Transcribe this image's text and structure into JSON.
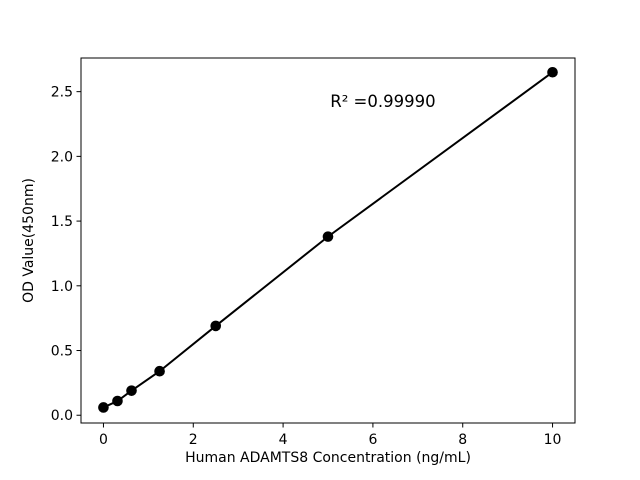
{
  "figure": {
    "background": "#ffffff"
  },
  "chart_data": {
    "type": "scatter",
    "title": "",
    "xlabel": "Human ADAMTS8 Concentration (ng/mL)",
    "ylabel": "OD Value(450nm)",
    "annotation": {
      "text": "R² =0.99990",
      "x": 5.05,
      "y": 2.38
    },
    "x": [
      0,
      0.3125,
      0.625,
      1.25,
      2.5,
      5,
      10
    ],
    "y": [
      0.06,
      0.11,
      0.19,
      0.34,
      0.69,
      1.38,
      2.65
    ],
    "line_through_points": true,
    "xticks": {
      "values": [
        0,
        2,
        4,
        6,
        8,
        10
      ],
      "labels": [
        "0",
        "2",
        "4",
        "6",
        "8",
        "10"
      ]
    },
    "yticks": {
      "values": [
        0,
        0.5,
        1,
        1.5,
        2,
        2.5
      ],
      "labels": [
        "0.0",
        "0.5",
        "1.0",
        "1.5",
        "2.0",
        "2.5"
      ]
    },
    "xlim": [
      -0.5,
      10.5
    ],
    "ylim": [
      -0.06,
      2.76
    ],
    "grid": false,
    "legend": null,
    "colors": {
      "line": "#000000",
      "marker": "#000000",
      "spine": "#000000",
      "text": "#000000",
      "background": "#ffffff"
    }
  }
}
